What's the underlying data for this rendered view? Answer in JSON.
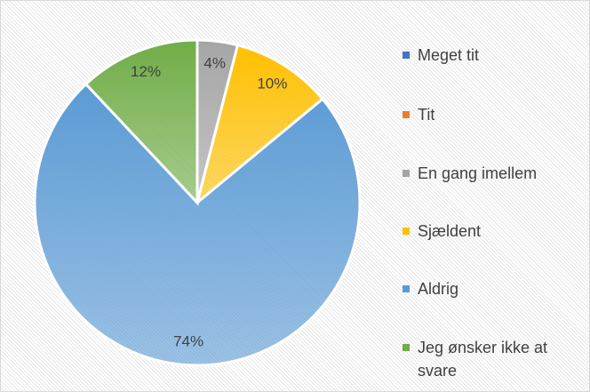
{
  "chart_data": {
    "type": "pie",
    "categories": [
      "Meget tit",
      "Tit",
      "En gang imellem",
      "Sjældent",
      "Aldrig",
      "Jeg ønsker ikke at svare"
    ],
    "values": [
      0,
      0,
      4,
      10,
      74,
      12
    ],
    "value_labels": [
      null,
      null,
      "4%",
      "10%",
      "74%",
      "12%"
    ],
    "colors": [
      "#4472c4",
      "#ed7d31",
      "#a5a5a5",
      "#ffc000",
      "#5b9bd5",
      "#70ad47"
    ],
    "legend": "right"
  }
}
